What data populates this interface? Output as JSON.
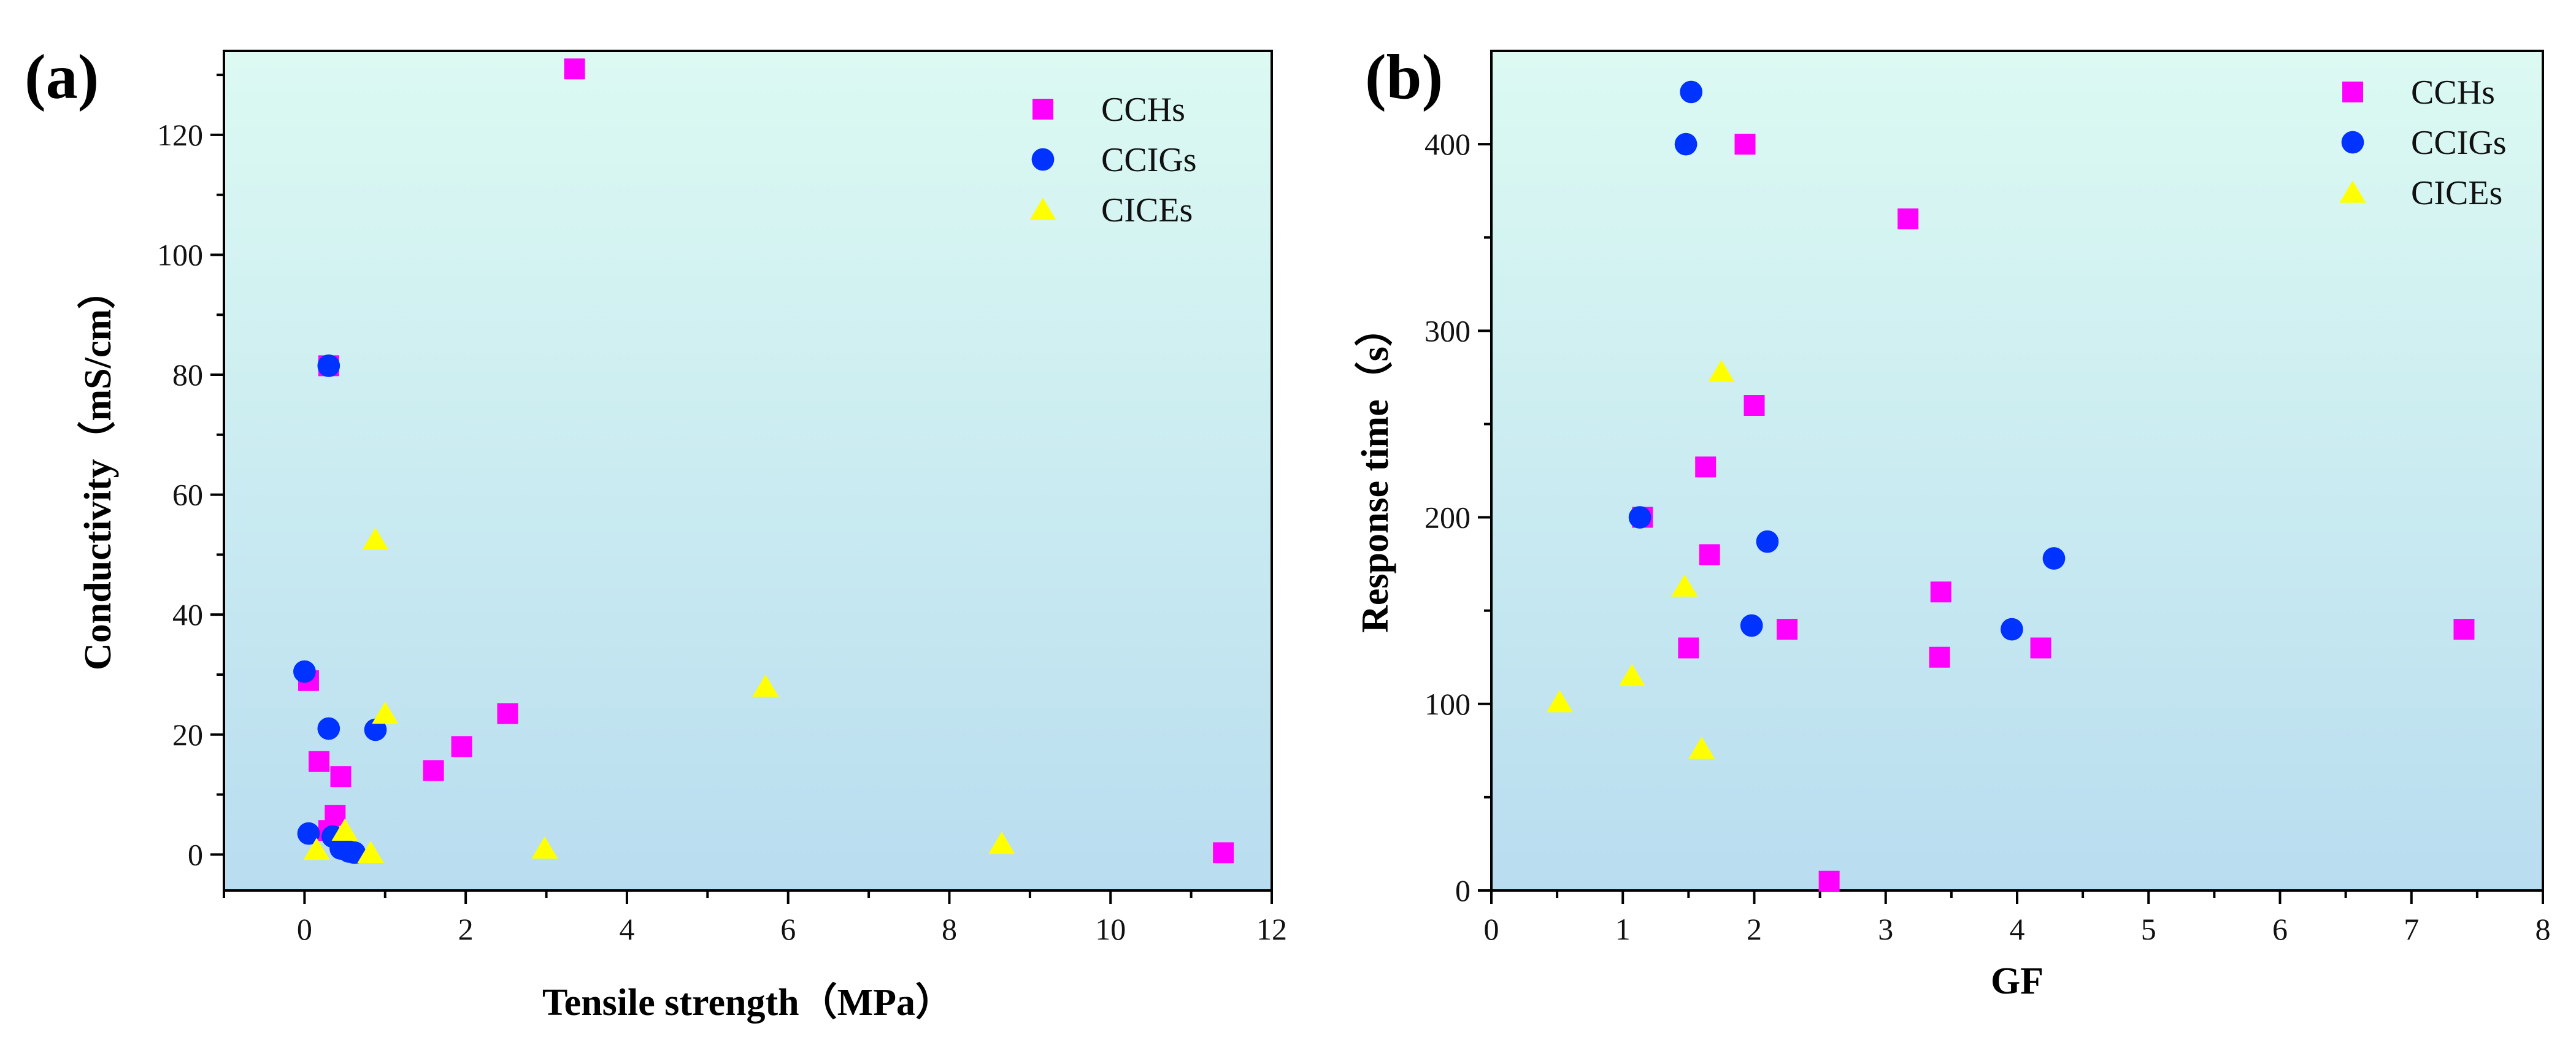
{
  "chart_data": [
    {
      "panel": "(a)",
      "type": "scatter",
      "title": "",
      "xlabel": "Tensile strength（MPa）",
      "ylabel": "Conductivity（mS/cm）",
      "xlim": [
        -1,
        12
      ],
      "ylim": [
        -6,
        134
      ],
      "xticks": [
        0,
        2,
        4,
        6,
        8,
        10,
        12
      ],
      "yticks": [
        0,
        20,
        40,
        60,
        80,
        100,
        120
      ],
      "legend_position": "top-right",
      "series": [
        {
          "name": "CCHs",
          "marker": "square",
          "color": "#ff00ff",
          "points": [
            [
              0.05,
              29.0
            ],
            [
              0.18,
              15.5
            ],
            [
              0.3,
              81.5
            ],
            [
              0.3,
              4.0
            ],
            [
              0.38,
              6.5
            ],
            [
              0.45,
              13.0
            ],
            [
              1.6,
              14.0
            ],
            [
              1.95,
              18.0
            ],
            [
              2.52,
              23.5
            ],
            [
              3.35,
              131.0
            ],
            [
              11.4,
              0.3
            ]
          ]
        },
        {
          "name": "CCIGs",
          "marker": "circle",
          "color": "#0033ff",
          "points": [
            [
              0.0,
              30.5
            ],
            [
              0.05,
              3.5
            ],
            [
              0.3,
              21.0
            ],
            [
              0.3,
              81.5
            ],
            [
              0.35,
              3.0
            ],
            [
              0.45,
              1.0
            ],
            [
              0.55,
              0.5
            ],
            [
              0.62,
              0.3
            ],
            [
              0.88,
              20.8
            ]
          ]
        },
        {
          "name": "CICEs",
          "marker": "triangle",
          "color": "#ffff00",
          "points": [
            [
              0.15,
              0.8
            ],
            [
              0.5,
              4.0
            ],
            [
              0.82,
              0.3
            ],
            [
              0.88,
              52.5
            ],
            [
              1.0,
              23.5
            ],
            [
              2.98,
              1.0
            ],
            [
              5.72,
              28.0
            ],
            [
              8.65,
              1.8
            ]
          ]
        }
      ]
    },
    {
      "panel": "(b)",
      "type": "scatter",
      "title": "",
      "xlabel": "GF",
      "ylabel": "Response time（s）",
      "xlim": [
        0,
        8
      ],
      "ylim": [
        0,
        450
      ],
      "xticks": [
        0,
        1,
        2,
        3,
        4,
        5,
        6,
        7,
        8
      ],
      "yticks": [
        0,
        100,
        200,
        300,
        400
      ],
      "legend_position": "top-right",
      "series": [
        {
          "name": "CCHs",
          "marker": "square",
          "color": "#ff00ff",
          "points": [
            [
              1.15,
              200
            ],
            [
              1.5,
              130
            ],
            [
              1.63,
              227
            ],
            [
              1.66,
              180
            ],
            [
              1.93,
              400
            ],
            [
              2.0,
              260
            ],
            [
              2.25,
              140
            ],
            [
              2.57,
              5
            ],
            [
              3.17,
              360
            ],
            [
              3.42,
              160
            ],
            [
              3.41,
              125
            ],
            [
              4.18,
              130
            ],
            [
              7.4,
              140
            ]
          ]
        },
        {
          "name": "CCIGs",
          "marker": "circle",
          "color": "#0033ff",
          "points": [
            [
              1.13,
              200
            ],
            [
              1.48,
              400
            ],
            [
              1.52,
              428
            ],
            [
              1.98,
              142
            ],
            [
              2.1,
              187
            ],
            [
              3.96,
              140
            ],
            [
              4.28,
              178
            ]
          ]
        },
        {
          "name": "CICEs",
          "marker": "triangle",
          "color": "#ffff00",
          "points": [
            [
              0.52,
              101
            ],
            [
              1.07,
              115
            ],
            [
              1.47,
              163
            ],
            [
              1.6,
              76
            ],
            [
              1.75,
              278
            ]
          ]
        }
      ]
    }
  ]
}
